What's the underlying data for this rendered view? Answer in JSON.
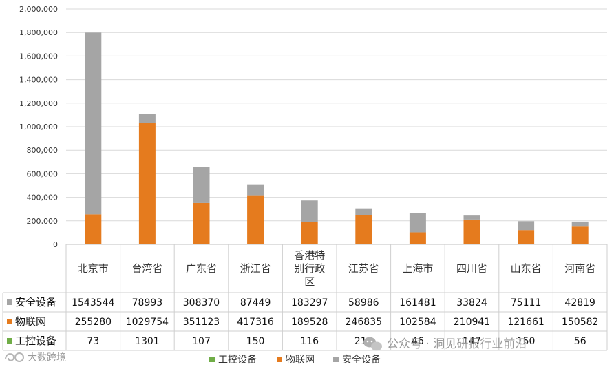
{
  "chart_data": {
    "type": "bar",
    "stacked": true,
    "categories": [
      "北京市",
      "台湾省",
      "广东省",
      "浙江省",
      "香港特别行政区",
      "江苏省",
      "上海市",
      "四川省",
      "山东省",
      "河南省"
    ],
    "series": [
      {
        "name": "工控设备",
        "color": "#70ad47",
        "values": [
          73,
          1301,
          107,
          150,
          116,
          216,
          46,
          147,
          150,
          56
        ]
      },
      {
        "name": "物联网",
        "color": "#e57b1e",
        "values": [
          255280,
          1029754,
          351123,
          417316,
          189528,
          246835,
          102584,
          210941,
          121661,
          150582
        ]
      },
      {
        "name": "安全设备",
        "color": "#a5a5a5",
        "values": [
          1543544,
          78993,
          308370,
          87449,
          183297,
          58986,
          161481,
          33824,
          75111,
          42819
        ]
      }
    ],
    "table_rows": [
      {
        "label": "安全设备",
        "values": [
          "1543544",
          "78993",
          "308370",
          "87449",
          "183297",
          "58986",
          "161481",
          "33824",
          "75111",
          "42819"
        ]
      },
      {
        "label": "物联网",
        "values": [
          "255280",
          "1029754",
          "351123",
          "417316",
          "189528",
          "246835",
          "102584",
          "210941",
          "121661",
          "150582"
        ]
      },
      {
        "label": "工控设备",
        "values": [
          "73",
          "1301",
          "107",
          "150",
          "116",
          "216",
          "46",
          "147",
          "150",
          "56"
        ]
      }
    ],
    "yticks": [
      "0",
      "200,000",
      "400,000",
      "600,000",
      "800,000",
      "1,000,000",
      "1,200,000",
      "1,400,000",
      "1,600,000",
      "1,800,000",
      "2,000,000"
    ],
    "ylim": [
      0,
      2000000
    ],
    "grid": true,
    "legend": {
      "position": "bottom",
      "items": [
        "工控设备",
        "物联网",
        "安全设备"
      ]
    }
  },
  "watermark": {
    "text": "公众号 · 洞见研报行业前沿",
    "corner_text": "大数跨境"
  }
}
